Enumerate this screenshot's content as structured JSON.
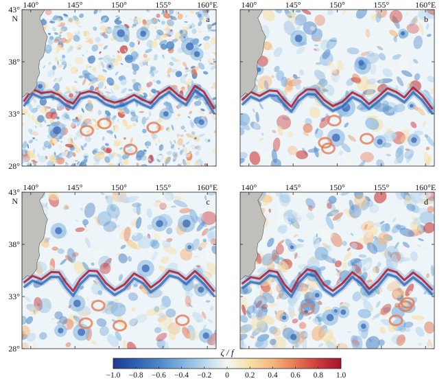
{
  "chart_data": {
    "type": "heatmap",
    "panels": [
      {
        "label": "a"
      },
      {
        "label": "b"
      },
      {
        "label": "c"
      },
      {
        "label": "d"
      }
    ],
    "x_ticks": [
      "140°",
      "145°",
      "150°",
      "155°",
      "160°E"
    ],
    "x_tick_values": [
      140,
      145,
      150,
      155,
      160
    ],
    "xlim": [
      139,
      161
    ],
    "y_ticks": [
      "43°",
      "38°",
      "33°",
      "28°"
    ],
    "y_tick_values": [
      43,
      38,
      33,
      28
    ],
    "ylim": [
      28,
      43
    ],
    "y_top_suffix": "N",
    "colorbar": {
      "label": "ζ / f",
      "ticks": [
        "−1.0",
        "−0.8",
        "−0.6",
        "−0.4",
        "−0.2",
        "0",
        "0.2",
        "0.4",
        "0.6",
        "0.8",
        "1.0"
      ],
      "tick_values": [
        -1.0,
        -0.8,
        -0.6,
        -0.4,
        -0.2,
        0,
        0.2,
        0.4,
        0.6,
        0.8,
        1.0
      ],
      "range": [
        -1.0,
        1.0
      ],
      "colors": [
        "#1f3b8c",
        "#2f5fb3",
        "#4f86c6",
        "#7fb0dd",
        "#b8d6ec",
        "#f4f7f4",
        "#f7dfa8",
        "#f4b77d",
        "#e57a55",
        "#cc3b3a",
        "#a3142a"
      ]
    },
    "colors": {
      "land": "#bfbfbb",
      "background": "#eef5f8",
      "current_positive": "#b2182b",
      "current_negative": "#2e5fae"
    }
  }
}
